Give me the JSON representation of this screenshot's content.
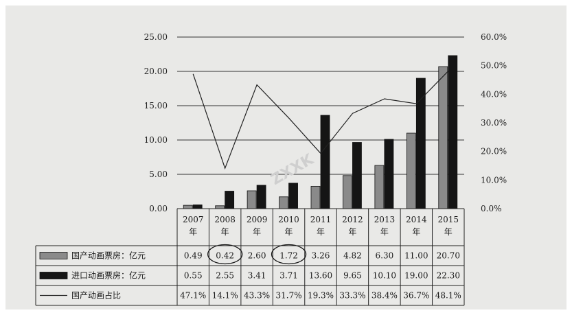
{
  "chart_data": {
    "type": "bar",
    "categories": [
      "2007\n年",
      "2008\n年",
      "2009\n年",
      "2010\n年",
      "2011\n年",
      "2012\n年",
      "2013\n年",
      "2014\n年",
      "2015\n年"
    ],
    "series": [
      {
        "name": "国产动画票房：亿元",
        "type": "bar",
        "axis": "left",
        "values": [
          0.49,
          0.42,
          2.6,
          1.72,
          3.26,
          4.82,
          6.3,
          11.0,
          20.7
        ],
        "labels": [
          "0.49",
          "0.42",
          "2.60",
          "1.72",
          "3.26",
          "4.82",
          "6.30",
          "11.00",
          "20.70"
        ],
        "color": "#8a8a8a"
      },
      {
        "name": "进口动画票房：亿元",
        "type": "bar",
        "axis": "left",
        "values": [
          0.55,
          2.55,
          3.41,
          3.71,
          13.6,
          9.65,
          10.1,
          19.0,
          22.3
        ],
        "labels": [
          "0.55",
          "2.55",
          "3.41",
          "3.71",
          "13.60",
          "9.65",
          "10.10",
          "19.00",
          "22.30"
        ],
        "color": "#151515"
      },
      {
        "name": "国产动画占比",
        "type": "line",
        "axis": "right",
        "values": [
          47.1,
          14.1,
          43.3,
          31.7,
          19.3,
          33.3,
          38.4,
          36.7,
          48.1
        ],
        "labels": [
          "47.1%",
          "14.1%",
          "43.3%",
          "31.7%",
          "19.3%",
          "33.3%",
          "38.4%",
          "36.7%",
          "48.1%"
        ],
        "color": "#222222"
      }
    ],
    "y_left": {
      "ticks": [
        "0.00",
        "5.00",
        "10.00",
        "15.00",
        "20.00",
        "25.00"
      ],
      "range": [
        0,
        25
      ]
    },
    "y_right": {
      "ticks": [
        "0.0%",
        "10.0%",
        "20.0%",
        "30.0%",
        "40.0%",
        "50.0%",
        "60.0%"
      ],
      "range": [
        0,
        60
      ]
    },
    "grid": true,
    "legend": "table-below",
    "circled_cells": [
      [
        0,
        1
      ],
      [
        0,
        3
      ]
    ],
    "watermark": "ZXXK"
  }
}
